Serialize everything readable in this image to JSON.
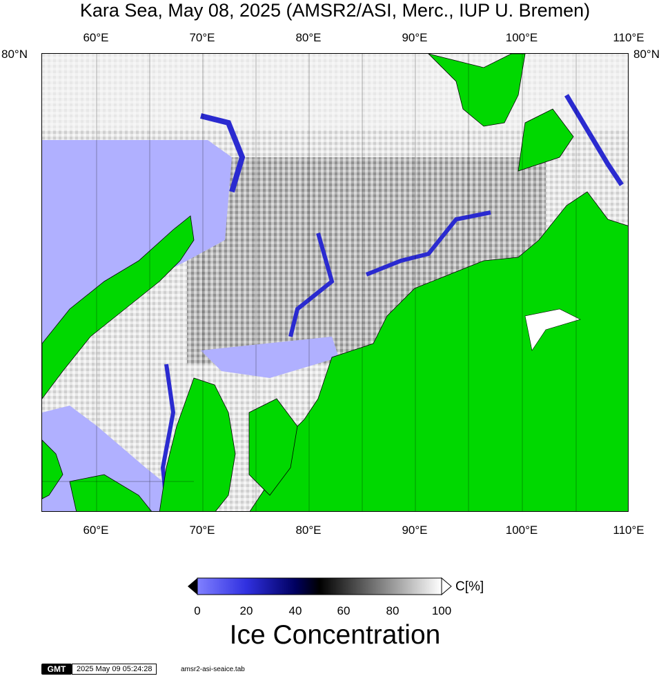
{
  "title": "Kara Sea, May 08, 2025 (AMSR2/ASI, Merc., IUP U. Bremen)",
  "longitude_labels": [
    "60°E",
    "70°E",
    "80°E",
    "90°E",
    "100°E",
    "110°E"
  ],
  "latitude_label": "80°N",
  "map": {
    "land_color": "#00d800",
    "water_color": "#b0b0ff",
    "grid": true
  },
  "colorbar": {
    "ticks": [
      "0",
      "20",
      "40",
      "60",
      "80",
      "100"
    ],
    "unit": "C[%]",
    "title": "Ice Concentration",
    "colors": [
      "#8080ff",
      "#3030e0",
      "#000060",
      "#000000",
      "#808080",
      "#ffffff"
    ]
  },
  "footer": {
    "logo": "GMT",
    "timestamp": "2025 May 09 05:24:28",
    "filename": "amsr2-asi-seaice.tab"
  }
}
